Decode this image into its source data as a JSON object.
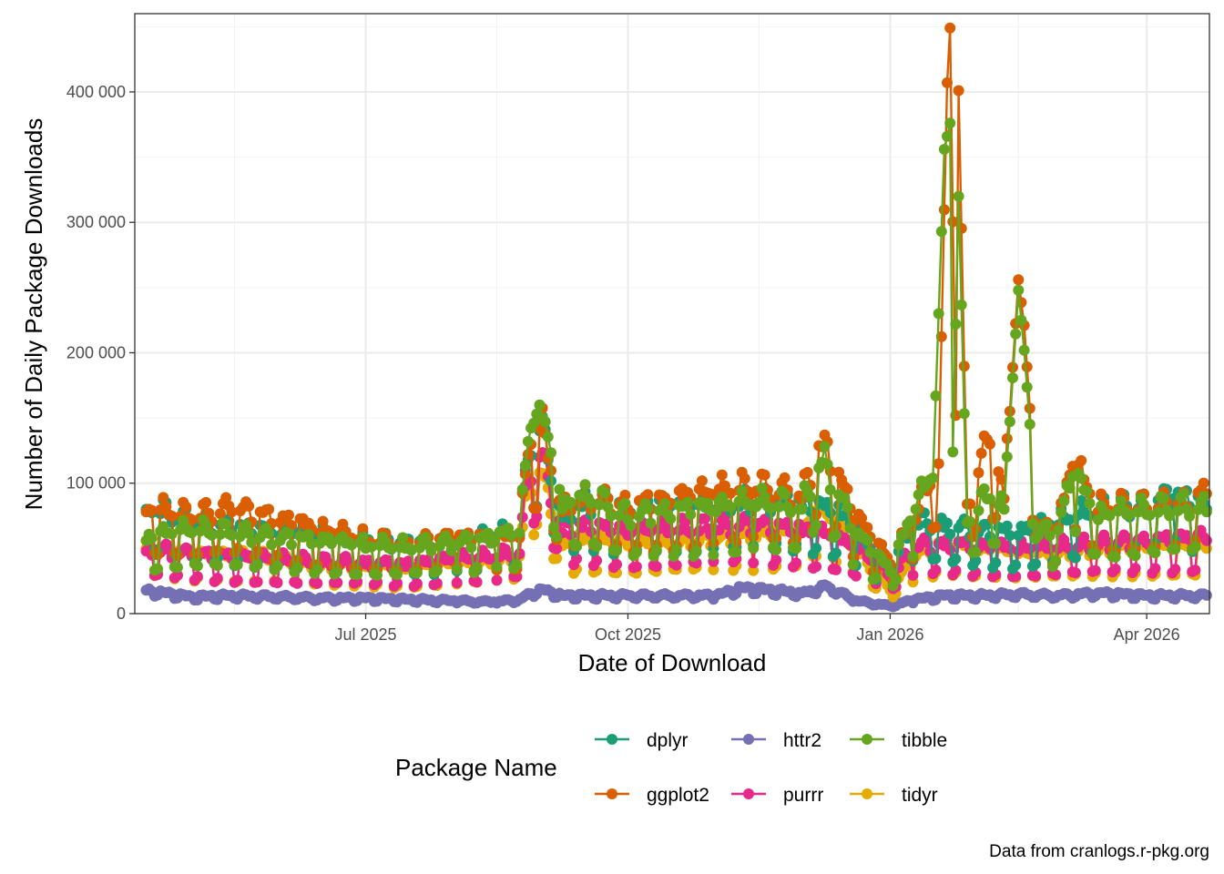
{
  "chart_data": {
    "type": "line",
    "xlabel": "Date of Download",
    "ylabel": "Number of Daily Package Downloads",
    "caption": "Data from cranlogs.r-pkg.org",
    "x_range": [
      "2025-04-11",
      "2026-04-23"
    ],
    "ylim": [
      0,
      460000
    ],
    "x_ticks": [
      {
        "date": "2025-07-01",
        "label": "Jul 2025"
      },
      {
        "date": "2025-10-01",
        "label": "Oct 2025"
      },
      {
        "date": "2026-01-01",
        "label": "Jan 2026"
      },
      {
        "date": "2026-04-01",
        "label": "Apr 2026"
      }
    ],
    "y_ticks": [
      {
        "value": 0,
        "label": "0"
      },
      {
        "value": 100000,
        "label": "100 000"
      },
      {
        "value": 200000,
        "label": "200 000"
      },
      {
        "value": 300000,
        "label": "300 000"
      },
      {
        "value": 400000,
        "label": "400 000"
      }
    ],
    "legend": {
      "title": "Package Name",
      "position": "bottom",
      "entries": [
        "dplyr",
        "ggplot2",
        "httr2",
        "purrr",
        "tibble",
        "tidyr"
      ]
    },
    "series": [
      {
        "name": "dplyr",
        "color": "#1B9E77",
        "points": [
          [
            "2025-04-15",
            80000
          ],
          [
            "2025-05-01",
            68000
          ],
          [
            "2025-05-15",
            64000
          ],
          [
            "2025-06-01",
            60000
          ],
          [
            "2025-06-15",
            57000
          ],
          [
            "2025-07-01",
            55000
          ],
          [
            "2025-07-15",
            52000
          ],
          [
            "2025-08-01",
            53000
          ],
          [
            "2025-08-15",
            58000
          ],
          [
            "2025-08-24",
            60000
          ],
          [
            "2025-08-27",
            118000
          ],
          [
            "2025-08-31",
            140000
          ],
          [
            "2025-09-08",
            74000
          ],
          [
            "2025-09-15",
            82000
          ],
          [
            "2025-10-01",
            78000
          ],
          [
            "2025-10-15",
            80000
          ],
          [
            "2025-11-01",
            80000
          ],
          [
            "2025-11-15",
            84000
          ],
          [
            "2025-12-01",
            82000
          ],
          [
            "2025-12-15",
            75000
          ],
          [
            "2025-12-26",
            46000
          ],
          [
            "2026-01-01",
            36000
          ],
          [
            "2026-01-10",
            68000
          ],
          [
            "2026-01-20",
            66000
          ],
          [
            "2026-02-01",
            62000
          ],
          [
            "2026-02-15",
            60000
          ],
          [
            "2026-03-01",
            68000
          ],
          [
            "2026-03-15",
            78000
          ],
          [
            "2026-04-01",
            80000
          ],
          [
            "2026-04-10",
            88000
          ],
          [
            "2026-04-22",
            80000
          ]
        ]
      },
      {
        "name": "ggplot2",
        "color": "#D95F02",
        "points": [
          [
            "2025-04-15",
            78000
          ],
          [
            "2025-05-01",
            72000
          ],
          [
            "2025-05-15",
            78000
          ],
          [
            "2025-06-01",
            70000
          ],
          [
            "2025-06-15",
            62000
          ],
          [
            "2025-07-01",
            55000
          ],
          [
            "2025-07-15",
            52000
          ],
          [
            "2025-08-01",
            56000
          ],
          [
            "2025-08-15",
            55000
          ],
          [
            "2025-08-24",
            58000
          ],
          [
            "2025-08-27",
            122000
          ],
          [
            "2025-08-31",
            142000
          ],
          [
            "2025-09-08",
            78000
          ],
          [
            "2025-09-15",
            86000
          ],
          [
            "2025-10-01",
            80000
          ],
          [
            "2025-10-15",
            84000
          ],
          [
            "2025-11-01",
            90000
          ],
          [
            "2025-11-15",
            94000
          ],
          [
            "2025-12-01",
            88000
          ],
          [
            "2025-12-08",
            128000
          ],
          [
            "2025-12-20",
            72000
          ],
          [
            "2026-01-01",
            38000
          ],
          [
            "2026-01-10",
            72000
          ],
          [
            "2026-01-18",
            115000
          ],
          [
            "2026-01-21",
            407000
          ],
          [
            "2026-01-22",
            449000
          ],
          [
            "2026-01-24",
            152000
          ],
          [
            "2026-01-25",
            401000
          ],
          [
            "2026-01-28",
            84000
          ],
          [
            "2026-02-05",
            130000
          ],
          [
            "2026-02-10",
            88000
          ],
          [
            "2026-02-15",
            256000
          ],
          [
            "2026-02-17",
            221000
          ],
          [
            "2026-02-22",
            62000
          ],
          [
            "2026-03-01",
            66000
          ],
          [
            "2026-03-06",
            113000
          ],
          [
            "2026-03-15",
            78000
          ],
          [
            "2026-04-01",
            80000
          ],
          [
            "2026-04-15",
            82000
          ],
          [
            "2026-04-22",
            92000
          ]
        ]
      },
      {
        "name": "httr2",
        "color": "#7570B3",
        "points": [
          [
            "2025-04-15",
            18000
          ],
          [
            "2025-05-01",
            13000
          ],
          [
            "2025-05-15",
            14000
          ],
          [
            "2025-06-01",
            13000
          ],
          [
            "2025-06-15",
            12000
          ],
          [
            "2025-07-01",
            12000
          ],
          [
            "2025-07-15",
            11000
          ],
          [
            "2025-08-01",
            10000
          ],
          [
            "2025-08-15",
            9000
          ],
          [
            "2025-08-24",
            11000
          ],
          [
            "2025-08-31",
            19000
          ],
          [
            "2025-09-08",
            14000
          ],
          [
            "2025-10-01",
            14000
          ],
          [
            "2025-10-15",
            14000
          ],
          [
            "2025-11-01",
            14000
          ],
          [
            "2025-11-10",
            20000
          ],
          [
            "2025-12-01",
            16000
          ],
          [
            "2025-12-10",
            21000
          ],
          [
            "2025-12-20",
            10000
          ],
          [
            "2026-01-01",
            6000
          ],
          [
            "2026-01-10",
            11000
          ],
          [
            "2026-01-20",
            14000
          ],
          [
            "2026-02-01",
            14000
          ],
          [
            "2026-02-15",
            15000
          ],
          [
            "2026-03-01",
            14000
          ],
          [
            "2026-03-15",
            16000
          ],
          [
            "2026-04-01",
            14000
          ],
          [
            "2026-04-22",
            14000
          ]
        ]
      },
      {
        "name": "purrr",
        "color": "#E7298A",
        "points": [
          [
            "2025-04-15",
            48000
          ],
          [
            "2025-05-01",
            44000
          ],
          [
            "2025-05-15",
            42000
          ],
          [
            "2025-06-01",
            40000
          ],
          [
            "2025-06-15",
            38000
          ],
          [
            "2025-07-01",
            38000
          ],
          [
            "2025-07-15",
            36000
          ],
          [
            "2025-08-01",
            40000
          ],
          [
            "2025-08-15",
            42000
          ],
          [
            "2025-08-24",
            46000
          ],
          [
            "2025-08-27",
            104000
          ],
          [
            "2025-08-31",
            120000
          ],
          [
            "2025-09-08",
            62000
          ],
          [
            "2025-09-15",
            66000
          ],
          [
            "2025-10-01",
            60000
          ],
          [
            "2025-10-15",
            62000
          ],
          [
            "2025-11-01",
            64000
          ],
          [
            "2025-11-15",
            66000
          ],
          [
            "2025-12-01",
            62000
          ],
          [
            "2025-12-15",
            56000
          ],
          [
            "2025-12-26",
            40000
          ],
          [
            "2026-01-01",
            28000
          ],
          [
            "2026-01-10",
            50000
          ],
          [
            "2026-01-20",
            52000
          ],
          [
            "2026-02-01",
            50000
          ],
          [
            "2026-02-15",
            48000
          ],
          [
            "2026-03-01",
            50000
          ],
          [
            "2026-03-15",
            52000
          ],
          [
            "2026-04-01",
            54000
          ],
          [
            "2026-04-22",
            56000
          ]
        ]
      },
      {
        "name": "tibble",
        "color": "#66A61E",
        "points": [
          [
            "2025-04-15",
            56000
          ],
          [
            "2025-05-01",
            62000
          ],
          [
            "2025-05-15",
            60000
          ],
          [
            "2025-06-01",
            56000
          ],
          [
            "2025-06-15",
            54000
          ],
          [
            "2025-07-01",
            50000
          ],
          [
            "2025-07-15",
            50000
          ],
          [
            "2025-08-01",
            52000
          ],
          [
            "2025-08-15",
            56000
          ],
          [
            "2025-08-24",
            62000
          ],
          [
            "2025-08-27",
            132000
          ],
          [
            "2025-08-31",
            160000
          ],
          [
            "2025-09-08",
            80000
          ],
          [
            "2025-09-15",
            90000
          ],
          [
            "2025-10-01",
            72000
          ],
          [
            "2025-10-15",
            76000
          ],
          [
            "2025-11-01",
            78000
          ],
          [
            "2025-11-15",
            82000
          ],
          [
            "2025-12-01",
            80000
          ],
          [
            "2025-12-08",
            116000
          ],
          [
            "2025-12-20",
            60000
          ],
          [
            "2026-01-01",
            32000
          ],
          [
            "2026-01-10",
            80000
          ],
          [
            "2026-01-16",
            104000
          ],
          [
            "2026-01-20",
            356000
          ],
          [
            "2026-01-22",
            376000
          ],
          [
            "2026-01-23",
            124000
          ],
          [
            "2026-01-25",
            320000
          ],
          [
            "2026-01-28",
            70000
          ],
          [
            "2026-02-05",
            88000
          ],
          [
            "2026-02-10",
            80000
          ],
          [
            "2026-02-15",
            248000
          ],
          [
            "2026-02-17",
            202000
          ],
          [
            "2026-02-22",
            60000
          ],
          [
            "2026-03-01",
            64000
          ],
          [
            "2026-03-06",
            105000
          ],
          [
            "2026-03-15",
            72000
          ],
          [
            "2026-04-01",
            76000
          ],
          [
            "2026-04-15",
            80000
          ],
          [
            "2026-04-22",
            78000
          ]
        ]
      },
      {
        "name": "tidyr",
        "color": "#E6AB02",
        "points": [
          [
            "2025-04-15",
            50000
          ],
          [
            "2025-05-01",
            44000
          ],
          [
            "2025-05-15",
            42000
          ],
          [
            "2025-06-01",
            40000
          ],
          [
            "2025-06-15",
            36000
          ],
          [
            "2025-07-01",
            36000
          ],
          [
            "2025-07-15",
            34000
          ],
          [
            "2025-08-01",
            38000
          ],
          [
            "2025-08-15",
            40000
          ],
          [
            "2025-08-24",
            44000
          ],
          [
            "2025-08-27",
            96000
          ],
          [
            "2025-08-31",
            108000
          ],
          [
            "2025-09-08",
            52000
          ],
          [
            "2025-09-15",
            56000
          ],
          [
            "2025-10-01",
            52000
          ],
          [
            "2025-10-15",
            54000
          ],
          [
            "2025-11-01",
            56000
          ],
          [
            "2025-11-15",
            58000
          ],
          [
            "2025-12-01",
            62000
          ],
          [
            "2025-12-08",
            80000
          ],
          [
            "2025-12-20",
            48000
          ],
          [
            "2026-01-01",
            18000
          ],
          [
            "2026-01-10",
            44000
          ],
          [
            "2026-01-20",
            52000
          ],
          [
            "2026-02-01",
            48000
          ],
          [
            "2026-02-15",
            46000
          ],
          [
            "2026-03-01",
            46000
          ],
          [
            "2026-03-15",
            48000
          ],
          [
            "2026-04-01",
            50000
          ],
          [
            "2026-04-22",
            50000
          ]
        ]
      }
    ]
  }
}
